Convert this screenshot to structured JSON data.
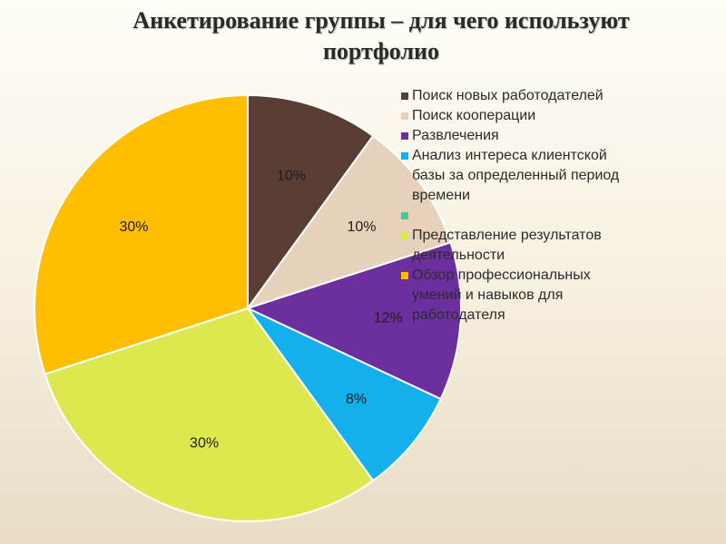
{
  "title_line1": "Анкетирование группы – для чего используют",
  "title_line2": "портфолио",
  "chart_data": {
    "type": "pie",
    "title": "Анкетирование группы – для чего используют портфолио",
    "slices": [
      {
        "name": "Поиск новых работодателей",
        "value": 10,
        "label": "10%",
        "color": "#5a3e36"
      },
      {
        "name": "Поиск кооперации",
        "value": 10,
        "label": "10%",
        "color": "#e7d1bb"
      },
      {
        "name": "Развлечения",
        "value": 12,
        "label": "12%",
        "color": "#6b2fa0"
      },
      {
        "name": "Анализ интереса клиентской базы за определенный период времени",
        "value": 8,
        "label": "8%",
        "color": "#13b0ec"
      },
      {
        "name": "Представление результатов деятельности",
        "value": 30,
        "label": "30%",
        "color": "#dde84f"
      },
      {
        "name": "Обзор профессиональных умений и навыков для работодателя",
        "value": 30,
        "label": "30%",
        "color": "#ffbf00"
      }
    ],
    "legend": {
      "position": "right",
      "entries": [
        {
          "lines": [
            "Поиск новых работодателей"
          ],
          "color": "#5a3e36"
        },
        {
          "lines": [
            "Поиск кооперации"
          ],
          "color": "#e7d1bb"
        },
        {
          "lines": [
            "Развлечения"
          ],
          "color": "#6b2fa0"
        },
        {
          "lines": [
            "Анализ интереса клиентской",
            "базы за определенный период",
            "времени"
          ],
          "color": "#13b0ec"
        },
        {
          "lines": [
            ""
          ],
          "color": "#4fc39a"
        },
        {
          "lines": [
            "Представление результатов",
            "деятельности"
          ],
          "color": "#dde84f"
        },
        {
          "lines": [
            "Обзор профессиональных",
            "умений и навыков для",
            "работодателя"
          ],
          "color": "#ffbf00"
        }
      ]
    }
  }
}
